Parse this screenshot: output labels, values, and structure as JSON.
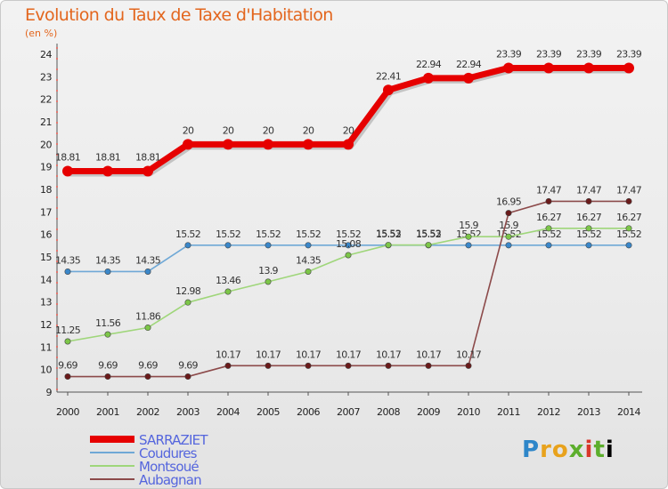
{
  "header": {
    "title": "Evolution du Taux de Taxe d'Habitation",
    "unit": "(en %)"
  },
  "logo": {
    "text": "Proxiti"
  },
  "chart_data": {
    "type": "line",
    "title": "Evolution du Taux de Taxe d'Habitation",
    "ylabel": "(en %)",
    "xlabel": "",
    "x": [
      "2000",
      "2001",
      "2002",
      "2003",
      "2004",
      "2005",
      "2006",
      "2007",
      "2008",
      "2009",
      "2010",
      "2011",
      "2012",
      "2013",
      "2014"
    ],
    "ylim": [
      9,
      24
    ],
    "yticks": [
      9,
      10,
      11,
      12,
      13,
      14,
      15,
      16,
      17,
      18,
      19,
      20,
      21,
      22,
      23,
      24
    ],
    "grid": false,
    "legend": "bottom-left",
    "series": [
      {
        "name": "SARRAZIET",
        "color": "#e60000",
        "values": [
          18.81,
          18.81,
          18.81,
          20,
          20,
          20,
          20,
          20,
          22.41,
          22.94,
          22.94,
          23.39,
          23.39,
          23.39,
          23.39
        ],
        "labels": [
          "18.81",
          "18.81",
          "18.81",
          "20",
          "20",
          "20",
          "20",
          "20",
          "22.41",
          "22.94",
          "22.94",
          "23.39",
          "23.39",
          "23.39",
          "23.39"
        ]
      },
      {
        "name": "Coudures",
        "color": "#6fa8d6",
        "values": [
          14.35,
          14.35,
          14.35,
          15.52,
          15.52,
          15.52,
          15.52,
          15.52,
          15.52,
          15.52,
          15.52,
          15.52,
          15.52,
          15.52,
          15.52
        ],
        "labels": [
          "14.35",
          "14.35",
          "14.35",
          "15.52",
          "15.52",
          "15.52",
          "15.52",
          "15.52",
          "15.52",
          "15.52",
          "15.52",
          "15.52",
          "15.52",
          "15.52",
          "15.52"
        ]
      },
      {
        "name": "Montsoué",
        "color": "#9fd67a",
        "values": [
          11.25,
          11.56,
          11.86,
          12.98,
          13.46,
          13.9,
          14.35,
          15.08,
          15.53,
          15.53,
          15.9,
          15.9,
          16.27,
          16.27,
          16.27
        ],
        "labels": [
          "11.25",
          "11.56",
          "11.86",
          "12.98",
          "13.46",
          "13.9",
          "14.35",
          "15.08",
          "15.53",
          "15.53",
          "15.9",
          "15.9",
          "16.27",
          "16.27",
          "16.27"
        ]
      },
      {
        "name": "Aubagnan",
        "color": "#8c4a4a",
        "values": [
          9.69,
          9.69,
          9.69,
          9.69,
          10.17,
          10.17,
          10.17,
          10.17,
          10.17,
          10.17,
          10.17,
          16.95,
          17.47,
          17.47,
          17.47
        ],
        "labels": [
          "9.69",
          "9.69",
          "9.69",
          "9.69",
          "10.17",
          "10.17",
          "10.17",
          "10.17",
          "10.17",
          "10.17",
          "10.17",
          "16.95",
          "17.47",
          "17.47",
          "17.47"
        ]
      }
    ]
  }
}
